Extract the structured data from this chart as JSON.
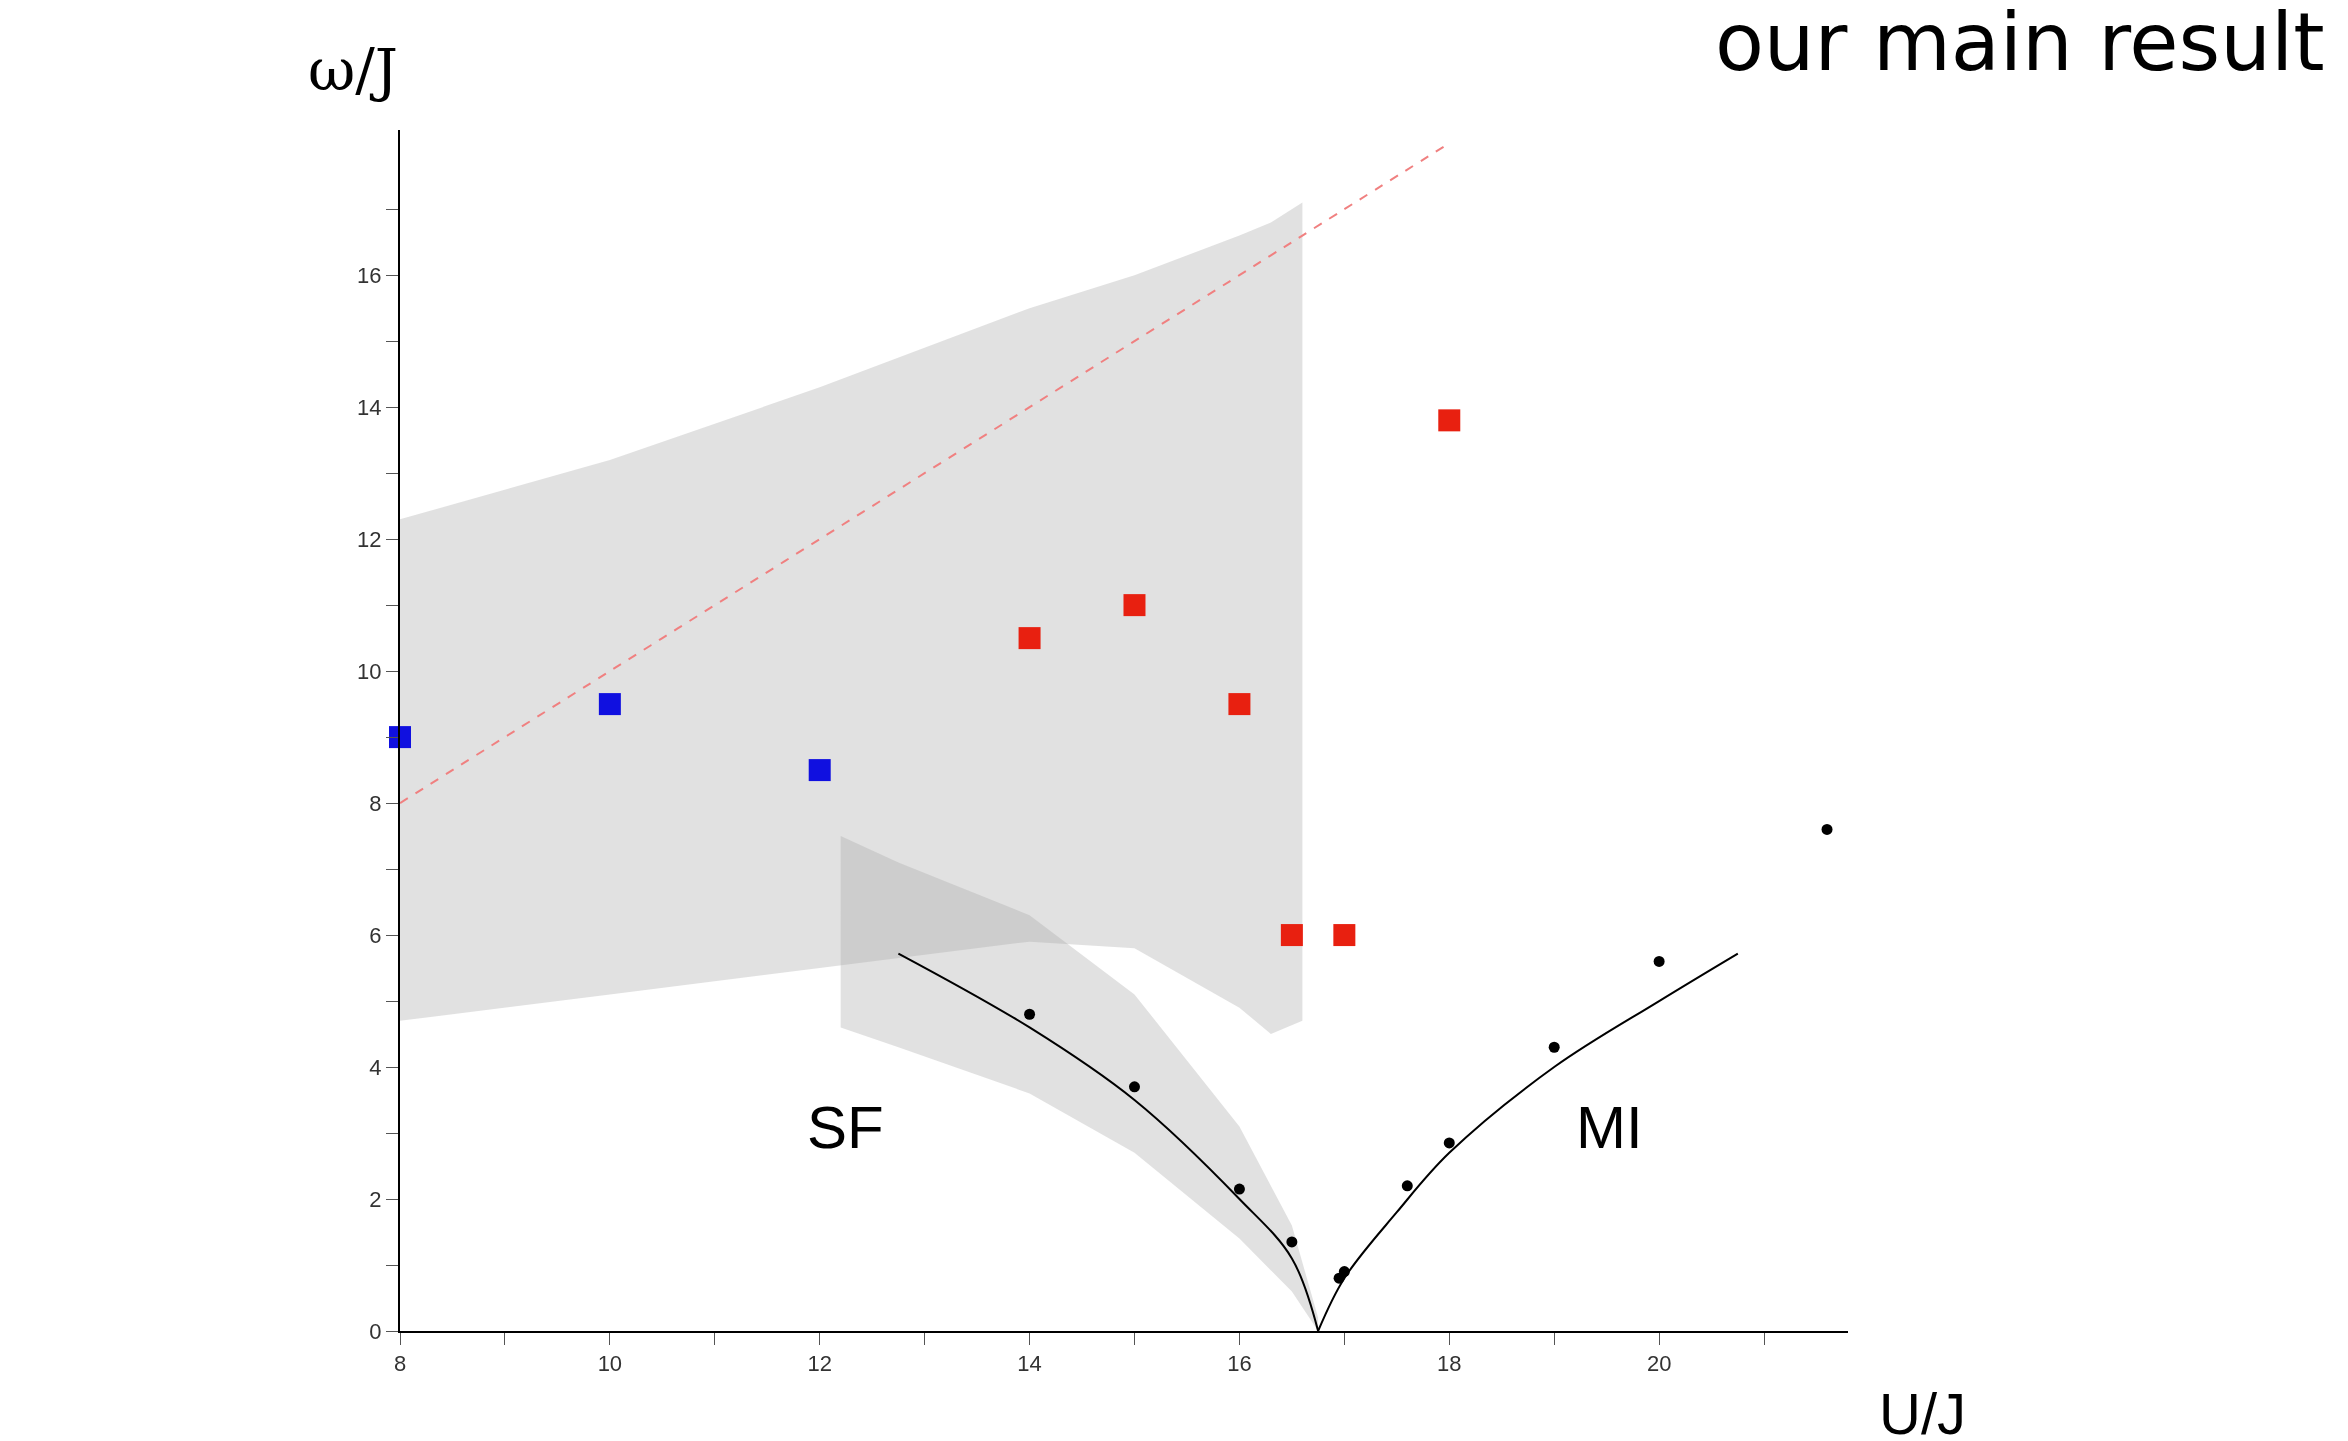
{
  "chart_data": {
    "type": "scatter",
    "title": "our main result",
    "xlabel": "U/J",
    "ylabel": "ω/J",
    "xlim": [
      8,
      21.8
    ],
    "ylim": [
      0,
      18.2
    ],
    "xticks": [
      8,
      {
        "value": 9,
        "label": null
      },
      10,
      {
        "value": 11,
        "label": null
      },
      12,
      {
        "value": 13,
        "label": null
      },
      14,
      {
        "value": 15,
        "label": null
      },
      16,
      {
        "value": 17,
        "label": null
      },
      18,
      {
        "value": 19,
        "label": null
      },
      20,
      {
        "value": 21,
        "label": null
      }
    ],
    "yticks": [
      0,
      {
        "value": 1,
        "label": null
      },
      2,
      {
        "value": 3,
        "label": null
      },
      4,
      {
        "value": 5,
        "label": null
      },
      6,
      {
        "value": 7,
        "label": null
      },
      8,
      {
        "value": 9,
        "label": null
      },
      10,
      {
        "value": 11,
        "label": null
      },
      12,
      {
        "value": 13,
        "label": null
      },
      14,
      {
        "value": 15,
        "label": null
      },
      16,
      {
        "value": 17,
        "label": null
      }
    ],
    "annotations": [
      "SF",
      "MI"
    ],
    "series": [
      {
        "type": "line",
        "color": "#f08080",
        "line_style": "dashed",
        "x": [
          8,
          10,
          12,
          14,
          15,
          16,
          16.3,
          16.6,
          18
        ],
        "values": [
          8,
          10,
          12,
          14,
          15,
          16,
          16.3,
          16.6,
          18
        ],
        "lower": [
          4.7,
          5.1,
          5.5,
          5.9,
          5.8,
          4.9,
          4.5,
          4.7,
          null
        ],
        "upper": [
          12.3,
          13.2,
          14.3,
          15.5,
          16.0,
          16.6,
          16.8,
          17.1,
          null
        ]
      },
      {
        "type": "line",
        "color": "#000000",
        "line_style": "solid",
        "x": [
          12.2,
          12.75,
          14,
          15,
          16,
          16.5,
          16.75
        ],
        "values": [
          null,
          5.72,
          4.6,
          3.5,
          2.0,
          1.1,
          0
        ],
        "lower": [
          4.6,
          4.3,
          3.6,
          2.7,
          1.4,
          0.6,
          0
        ],
        "upper": [
          7.5,
          7.1,
          6.3,
          5.1,
          3.1,
          1.6,
          0.2
        ]
      },
      {
        "type": "line",
        "color": "#000000",
        "line_style": "solid",
        "x": [
          16.75,
          17,
          17.5,
          18,
          19,
          20,
          20.75
        ],
        "values": [
          0,
          0.8,
          1.8,
          2.7,
          4.0,
          5.0,
          5.72
        ]
      },
      {
        "color": "#1010e0",
        "marker": "square",
        "x": [
          8,
          10,
          12
        ],
        "values": [
          9.0,
          9.5,
          8.5
        ]
      },
      {
        "color": "#e82010",
        "marker": "square",
        "x": [
          14,
          15,
          16,
          16.5,
          17,
          18
        ],
        "values": [
          10.5,
          11.0,
          9.5,
          6.0,
          6.0,
          13.8
        ]
      },
      {
        "color": "#000000",
        "marker": "circle",
        "x": [
          14,
          15,
          16,
          16.5,
          16.95,
          17,
          17.6,
          18,
          19,
          20,
          21.6
        ],
        "values": [
          4.8,
          3.7,
          2.15,
          1.35,
          0.8,
          0.9,
          2.2,
          2.85,
          4.3,
          5.6,
          7.6
        ]
      }
    ]
  }
}
